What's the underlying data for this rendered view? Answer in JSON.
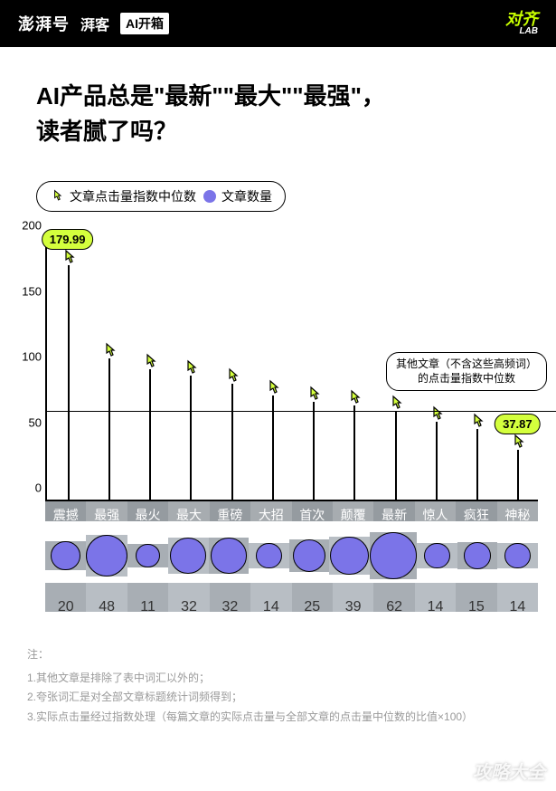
{
  "header": {
    "logo": "澎湃号",
    "sub": "湃客",
    "box": "AI开箱",
    "right_top": "对齐",
    "right_bottom": "LAB"
  },
  "title_l1": "AI产品总是\"最新\"\"最大\"\"最强\"，",
  "title_l2": "读者腻了吗？",
  "legend": {
    "item1": "文章点击量指数中位数",
    "item2": "文章数量"
  },
  "colors": {
    "accent": "#d4ff3d",
    "bubble": "#7b74e8",
    "grey1": "#b8bec4",
    "grey2": "#a8aeb4",
    "cat_bg": "#8a9096"
  },
  "chart": {
    "ylim": [
      0,
      200
    ],
    "yticks": [
      0,
      50,
      100,
      150,
      200
    ],
    "ref_value": 67.06,
    "ref_label_l1": "其他文章（不含这些高频词）",
    "ref_label_l2": "的点击量指数中位数",
    "highlight_first": 179.99,
    "highlight_last": 37.87,
    "categories": [
      "震撼",
      "最强",
      "最火",
      "最大",
      "重磅",
      "大招",
      "首次",
      "颠覆",
      "最新",
      "惊人",
      "疯狂",
      "神秘"
    ],
    "values": [
      179.99,
      108,
      100,
      95,
      89,
      80,
      75,
      72,
      68,
      60,
      54,
      37.87
    ],
    "counts": [
      20,
      48,
      11,
      32,
      32,
      14,
      25,
      39,
      62,
      14,
      15,
      14
    ]
  },
  "notes": {
    "title": "注：",
    "n1": "1.其他文章是排除了表中词汇以外的；",
    "n2": "2.夸张词汇是对全部文章标题统计词频得到；",
    "n3": "3.实际点击量经过指数处理（每篇文章的实际点击量与全部文章的点击量中位数的比值×100）"
  },
  "watermark": "攻略大全"
}
